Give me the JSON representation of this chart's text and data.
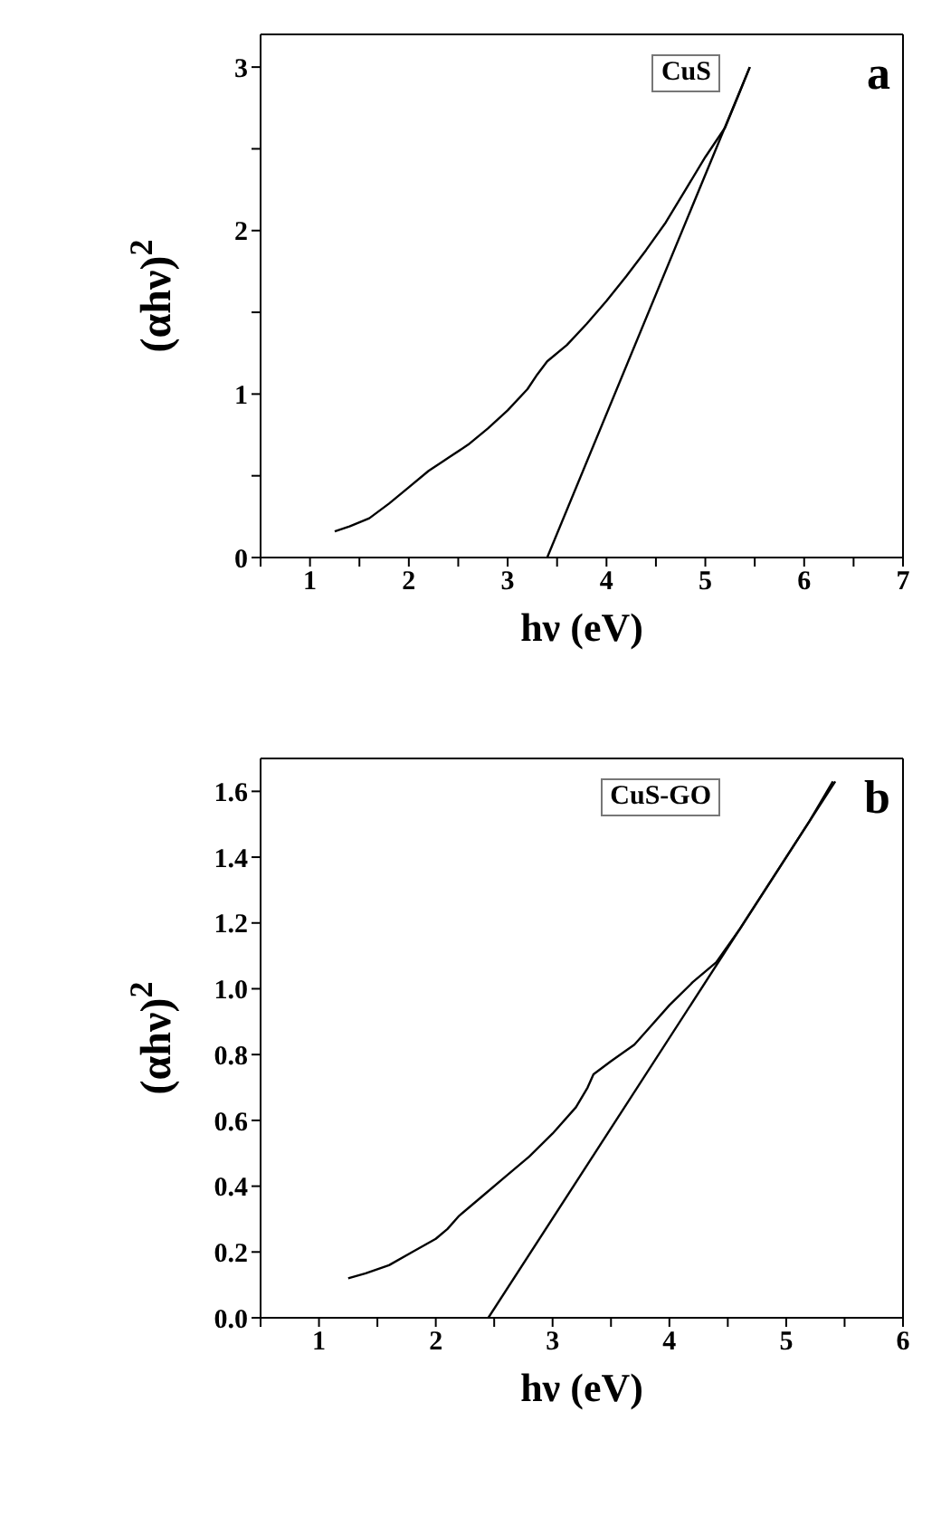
{
  "chart_data": [
    {
      "type": "line",
      "xlabel": "hν (eV)",
      "ylabel": "(αhν)$^{2}$",
      "annotations": [
        "CuS",
        "a"
      ],
      "xlim": [
        0.5,
        7
      ],
      "ylim": [
        0,
        3.2
      ],
      "xticks": [
        {
          "value": 0.5,
          "label": null
        },
        1,
        {
          "value": 1.5,
          "label": null
        },
        2,
        {
          "value": 2.5,
          "label": null
        },
        3,
        {
          "value": 3.5,
          "label": null
        },
        4,
        {
          "value": 4.5,
          "label": null
        },
        5,
        {
          "value": 5.5,
          "label": null
        },
        6,
        {
          "value": 6.5,
          "label": null
        },
        7
      ],
      "yticks": [
        0,
        {
          "value": 0.5,
          "label": null
        },
        1,
        {
          "value": 1.5,
          "label": null
        },
        2,
        {
          "value": 2.5,
          "label": null
        },
        3
      ],
      "marker": "none",
      "series": [
        {
          "color": "#000000",
          "x": [
            1.25,
            1.4,
            1.6,
            1.8,
            2.0,
            2.2,
            2.4,
            2.6,
            2.8,
            3.0,
            3.2,
            3.3,
            3.4,
            3.6,
            3.8,
            4.0,
            4.2,
            4.4,
            4.6,
            4.8,
            5.0,
            5.2,
            5.35,
            5.45
          ],
          "values": [
            0.16,
            0.19,
            0.24,
            0.33,
            0.43,
            0.53,
            0.61,
            0.69,
            0.79,
            0.9,
            1.03,
            1.12,
            1.2,
            1.3,
            1.43,
            1.57,
            1.72,
            1.88,
            2.05,
            2.25,
            2.45,
            2.63,
            2.85,
            3.0
          ]
        },
        {
          "color": "#000000",
          "x": [
            3.4,
            5.45
          ],
          "values": [
            0,
            3.0
          ]
        }
      ]
    },
    {
      "type": "line",
      "xlabel": "hν (eV)",
      "ylabel": "(αhν)$^{2}$",
      "annotations": [
        "CuS-GO",
        "b"
      ],
      "xlim": [
        0.5,
        6
      ],
      "ylim": [
        0,
        1.7
      ],
      "xticks": [
        {
          "value": 0.5,
          "label": null
        },
        1,
        {
          "value": 1.5,
          "label": null
        },
        2,
        {
          "value": 2.5,
          "label": null
        },
        3,
        {
          "value": 3.5,
          "label": null
        },
        4,
        {
          "value": 4.5,
          "label": null
        },
        5,
        {
          "value": 5.5,
          "label": null
        },
        6
      ],
      "yticks": [
        {
          "value": 0,
          "label": "0.0"
        },
        0.2,
        0.4,
        0.6,
        0.8,
        {
          "value": 1,
          "label": "1.0"
        },
        1.2,
        1.4,
        1.6
      ],
      "marker": "none",
      "series": [
        {
          "color": "#000000",
          "x": [
            1.25,
            1.4,
            1.6,
            1.8,
            2.0,
            2.1,
            2.2,
            2.4,
            2.6,
            2.8,
            3.0,
            3.2,
            3.3,
            3.35,
            3.5,
            3.7,
            3.8,
            4.0,
            4.2,
            4.4,
            4.6,
            4.8,
            5.0,
            5.2,
            5.4
          ],
          "values": [
            0.12,
            0.135,
            0.16,
            0.2,
            0.24,
            0.27,
            0.31,
            0.37,
            0.43,
            0.49,
            0.56,
            0.64,
            0.7,
            0.74,
            0.78,
            0.83,
            0.87,
            0.95,
            1.02,
            1.08,
            1.18,
            1.29,
            1.4,
            1.51,
            1.63
          ]
        },
        {
          "color": "#000000",
          "x": [
            2.45,
            5.42
          ],
          "values": [
            0,
            1.63
          ]
        }
      ]
    }
  ]
}
